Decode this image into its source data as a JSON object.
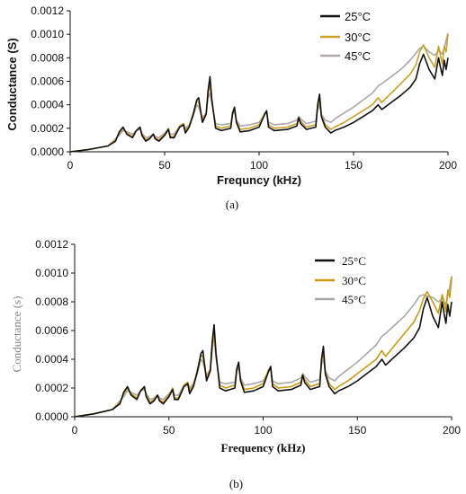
{
  "chart_data": [
    {
      "type": "line",
      "panel": "a",
      "caption": "(a)",
      "xlabel": "Frequncy (kHz)",
      "ylabel": "Conductance (S)",
      "xlim": [
        0,
        200
      ],
      "ylim": [
        0,
        0.0012
      ],
      "xticks": [
        "0",
        "50",
        "100",
        "150",
        "200"
      ],
      "yticks": [
        "0.0000",
        "0.0002",
        "0.0004",
        "0.0006",
        "0.0008",
        "0.0010",
        "0.0012"
      ],
      "legend_position": "top-right",
      "series": [
        {
          "name": "25°C",
          "color": "#111111",
          "x": [
            0,
            10,
            20,
            24,
            26,
            28,
            30,
            33,
            35,
            37,
            38,
            40,
            42,
            44,
            45,
            47,
            50,
            52,
            53,
            55,
            58,
            60,
            61,
            63,
            65,
            67,
            68,
            70,
            72,
            73,
            74,
            75,
            77,
            80,
            85,
            86,
            87,
            88,
            90,
            95,
            100,
            103,
            104,
            105,
            108,
            115,
            120,
            121,
            122,
            125,
            130,
            131,
            132,
            133,
            135,
            138,
            140,
            145,
            150,
            155,
            160,
            163,
            165,
            170,
            175,
            180,
            183,
            185,
            187,
            190,
            193,
            195,
            196,
            197,
            198,
            199,
            200
          ],
          "y": [
            0,
            2e-05,
            5e-05,
            9e-05,
            0.00017,
            0.00021,
            0.00015,
            0.00012,
            0.00018,
            0.00021,
            0.00014,
            9e-05,
            0.00011,
            0.00015,
            0.00011,
            9e-05,
            0.00014,
            0.00019,
            0.00012,
            0.00012,
            0.00021,
            0.00023,
            0.00016,
            0.00021,
            0.00031,
            0.00044,
            0.00046,
            0.00025,
            0.00032,
            0.00052,
            0.00064,
            0.00044,
            0.0002,
            0.00018,
            0.0002,
            0.00033,
            0.00038,
            0.00025,
            0.00017,
            0.00018,
            0.00021,
            0.00032,
            0.00035,
            0.00021,
            0.00018,
            0.00019,
            0.00022,
            0.00029,
            0.00024,
            0.00019,
            0.00021,
            0.0004,
            0.00049,
            0.0003,
            0.00021,
            0.00016,
            0.00018,
            0.00021,
            0.00025,
            0.0003,
            0.00035,
            0.0004,
            0.00036,
            0.00042,
            0.00048,
            0.00055,
            0.00062,
            0.00075,
            0.00083,
            0.0007,
            0.00062,
            0.0008,
            0.00072,
            0.00065,
            0.00078,
            0.0007,
            0.0008
          ]
        },
        {
          "name": "30°C",
          "color": "#c9a227",
          "x": [
            0,
            10,
            20,
            24,
            26,
            28,
            30,
            33,
            35,
            37,
            38,
            40,
            42,
            44,
            45,
            47,
            50,
            52,
            53,
            55,
            58,
            60,
            61,
            63,
            65,
            67,
            68,
            70,
            72,
            73,
            74,
            75,
            77,
            80,
            85,
            86,
            87,
            88,
            90,
            95,
            100,
            103,
            104,
            105,
            108,
            115,
            120,
            121,
            122,
            125,
            130,
            131,
            132,
            133,
            135,
            138,
            140,
            145,
            150,
            155,
            160,
            163,
            165,
            170,
            175,
            180,
            183,
            185,
            187,
            190,
            193,
            195,
            196,
            197,
            198,
            199,
            200
          ],
          "y": [
            0,
            2e-05,
            5e-05,
            0.0001,
            0.00016,
            0.0002,
            0.00016,
            0.00013,
            0.00018,
            0.0002,
            0.00015,
            0.0001,
            0.00012,
            0.00015,
            0.00012,
            0.0001,
            0.00015,
            0.0002,
            0.00013,
            0.00013,
            0.00022,
            0.00024,
            0.00018,
            0.00022,
            0.00032,
            0.00043,
            0.00042,
            0.00027,
            0.00033,
            0.0005,
            0.00057,
            0.00043,
            0.00022,
            0.0002,
            0.00022,
            0.00034,
            0.00037,
            0.00026,
            0.00019,
            0.0002,
            0.00023,
            0.00033,
            0.00034,
            0.00023,
            0.0002,
            0.00021,
            0.00024,
            0.00029,
            0.00026,
            0.00021,
            0.00023,
            0.00039,
            0.00044,
            0.00031,
            0.00023,
            0.00019,
            0.00021,
            0.00025,
            0.0003,
            0.00035,
            0.0004,
            0.00046,
            0.00042,
            0.0005,
            0.00058,
            0.00066,
            0.00074,
            0.00085,
            0.00091,
            0.0008,
            0.00072,
            0.0009,
            0.00082,
            0.00075,
            0.0009,
            0.00085,
            0.001
          ]
        },
        {
          "name": "45°C",
          "color": "#b0a6ad",
          "x": [
            0,
            10,
            20,
            24,
            26,
            28,
            30,
            33,
            35,
            37,
            38,
            40,
            42,
            44,
            45,
            47,
            50,
            52,
            53,
            55,
            58,
            60,
            61,
            63,
            65,
            67,
            68,
            70,
            72,
            73,
            74,
            75,
            77,
            80,
            85,
            86,
            87,
            88,
            90,
            95,
            100,
            103,
            104,
            105,
            108,
            115,
            120,
            121,
            122,
            125,
            130,
            131,
            132,
            133,
            135,
            138,
            140,
            145,
            150,
            155,
            160,
            163,
            165,
            170,
            175,
            180,
            183,
            185,
            187,
            190,
            193,
            195,
            196,
            197,
            198,
            199,
            200
          ],
          "y": [
            0,
            2e-05,
            5e-05,
            0.00011,
            0.00014,
            0.00018,
            0.00017,
            0.00015,
            0.00018,
            0.00019,
            0.00016,
            0.00012,
            0.00013,
            0.00015,
            0.00013,
            0.00012,
            0.00016,
            0.00019,
            0.00015,
            0.00015,
            0.00022,
            0.00024,
            0.0002,
            0.00023,
            0.0003,
            0.0004,
            0.00038,
            0.00029,
            0.00033,
            0.00046,
            0.0005,
            0.00041,
            0.00024,
            0.00023,
            0.00024,
            0.00032,
            0.00034,
            0.00027,
            0.00022,
            0.00023,
            0.00025,
            0.00032,
            0.00033,
            0.00025,
            0.00023,
            0.00024,
            0.00027,
            0.0003,
            0.00028,
            0.00024,
            0.00026,
            0.00036,
            0.0004,
            0.00032,
            0.00027,
            0.00025,
            0.00028,
            0.00033,
            0.00038,
            0.00044,
            0.0005,
            0.00056,
            0.00058,
            0.00064,
            0.0007,
            0.00078,
            0.00084,
            0.00088,
            0.0009,
            0.00085,
            0.00082,
            0.00086,
            0.00085,
            0.00083,
            0.00088,
            0.00095,
            0.00101
          ]
        }
      ]
    },
    {
      "type": "line",
      "panel": "b",
      "caption": "(b)",
      "xlabel": "Frequency (kHz)",
      "ylabel": "Conductance (s)",
      "xlim": [
        0,
        200
      ],
      "ylim": [
        0,
        0.0012
      ],
      "xticks": [
        "0",
        "50",
        "100",
        "150",
        "200"
      ],
      "yticks": [
        "0.0000",
        "0.0002",
        "0.0004",
        "0.0006",
        "0.0008",
        "0.0010",
        "0.0012"
      ],
      "legend_position": "top-right",
      "series": [
        {
          "name": "25°C",
          "color": "#111111",
          "x": [
            0,
            10,
            20,
            24,
            26,
            28,
            30,
            33,
            35,
            37,
            38,
            40,
            42,
            44,
            45,
            47,
            50,
            52,
            53,
            55,
            58,
            60,
            61,
            63,
            65,
            67,
            68,
            70,
            72,
            73,
            74,
            75,
            77,
            80,
            85,
            86,
            87,
            88,
            90,
            95,
            100,
            103,
            104,
            105,
            108,
            115,
            120,
            121,
            122,
            125,
            130,
            131,
            132,
            133,
            135,
            138,
            140,
            145,
            150,
            155,
            160,
            163,
            165,
            170,
            175,
            180,
            183,
            185,
            187,
            190,
            193,
            195,
            196,
            197,
            198,
            199,
            200
          ],
          "y": [
            0,
            2e-05,
            5e-05,
            9e-05,
            0.00017,
            0.00021,
            0.00015,
            0.00012,
            0.00018,
            0.00021,
            0.00014,
            9e-05,
            0.00011,
            0.00015,
            0.00011,
            9e-05,
            0.00014,
            0.00019,
            0.00012,
            0.00012,
            0.00021,
            0.00023,
            0.00016,
            0.00021,
            0.00031,
            0.00044,
            0.00046,
            0.00025,
            0.00032,
            0.00052,
            0.00064,
            0.00044,
            0.0002,
            0.00018,
            0.0002,
            0.00033,
            0.00038,
            0.00025,
            0.00017,
            0.00018,
            0.00021,
            0.00032,
            0.00035,
            0.00021,
            0.00018,
            0.00019,
            0.00022,
            0.00029,
            0.00024,
            0.00019,
            0.00021,
            0.0004,
            0.00049,
            0.0003,
            0.00021,
            0.00016,
            0.00018,
            0.00021,
            0.00025,
            0.0003,
            0.00035,
            0.0004,
            0.00036,
            0.00042,
            0.00048,
            0.00055,
            0.00062,
            0.00075,
            0.00083,
            0.0007,
            0.00062,
            0.0008,
            0.00072,
            0.00065,
            0.00078,
            0.0007,
            0.0008
          ]
        },
        {
          "name": "30°C",
          "color": "#c99a10",
          "x": [
            0,
            10,
            20,
            24,
            26,
            28,
            30,
            33,
            35,
            37,
            38,
            40,
            42,
            44,
            45,
            47,
            50,
            52,
            53,
            55,
            58,
            60,
            61,
            63,
            65,
            67,
            68,
            70,
            72,
            73,
            74,
            75,
            77,
            80,
            85,
            86,
            87,
            88,
            90,
            95,
            100,
            103,
            104,
            105,
            108,
            115,
            120,
            121,
            122,
            125,
            130,
            131,
            132,
            133,
            135,
            138,
            140,
            145,
            150,
            155,
            160,
            163,
            165,
            170,
            175,
            180,
            183,
            185,
            187,
            190,
            193,
            195,
            196,
            197,
            198,
            199,
            200
          ],
          "y": [
            0,
            2e-05,
            5e-05,
            0.0001,
            0.00016,
            0.0002,
            0.00016,
            0.00013,
            0.00018,
            0.0002,
            0.00015,
            0.0001,
            0.00012,
            0.00015,
            0.00012,
            0.0001,
            0.00015,
            0.0002,
            0.00013,
            0.00013,
            0.00022,
            0.00024,
            0.00018,
            0.00022,
            0.00032,
            0.00043,
            0.00042,
            0.00027,
            0.00033,
            0.0005,
            0.00057,
            0.00043,
            0.00022,
            0.0002,
            0.00022,
            0.00034,
            0.00037,
            0.00026,
            0.00019,
            0.0002,
            0.00023,
            0.00033,
            0.00034,
            0.00023,
            0.0002,
            0.00021,
            0.00024,
            0.00029,
            0.00026,
            0.00021,
            0.00023,
            0.00039,
            0.00044,
            0.00031,
            0.00023,
            0.00019,
            0.00021,
            0.00025,
            0.0003,
            0.00035,
            0.0004,
            0.00046,
            0.00042,
            0.0005,
            0.00058,
            0.00066,
            0.00074,
            0.00082,
            0.00087,
            0.0008,
            0.00072,
            0.00085,
            0.0008,
            0.00073,
            0.00088,
            0.00083,
            0.00097
          ]
        },
        {
          "name": "45°C",
          "color": "#a8a8a8",
          "x": [
            0,
            10,
            20,
            24,
            26,
            28,
            30,
            33,
            35,
            37,
            38,
            40,
            42,
            44,
            45,
            47,
            50,
            52,
            53,
            55,
            58,
            60,
            61,
            63,
            65,
            67,
            68,
            70,
            72,
            73,
            74,
            75,
            77,
            80,
            85,
            86,
            87,
            88,
            90,
            95,
            100,
            103,
            104,
            105,
            108,
            115,
            120,
            121,
            122,
            125,
            130,
            131,
            132,
            133,
            135,
            138,
            140,
            145,
            150,
            155,
            160,
            163,
            165,
            170,
            175,
            180,
            183,
            185,
            187,
            190,
            193,
            195,
            196,
            197,
            198,
            199,
            200
          ],
          "y": [
            0,
            2e-05,
            5e-05,
            0.00011,
            0.00014,
            0.00018,
            0.00017,
            0.00015,
            0.00018,
            0.00019,
            0.00016,
            0.00012,
            0.00013,
            0.00015,
            0.00013,
            0.00012,
            0.00016,
            0.00019,
            0.00015,
            0.00015,
            0.00022,
            0.00024,
            0.0002,
            0.00023,
            0.0003,
            0.0004,
            0.00038,
            0.00029,
            0.00033,
            0.00046,
            0.00058,
            0.00041,
            0.00024,
            0.00023,
            0.00024,
            0.00032,
            0.00034,
            0.00027,
            0.00022,
            0.00023,
            0.00025,
            0.00032,
            0.00033,
            0.00025,
            0.00023,
            0.00024,
            0.00027,
            0.0003,
            0.00028,
            0.00024,
            0.00026,
            0.00036,
            0.0004,
            0.00032,
            0.00027,
            0.00025,
            0.00028,
            0.00033,
            0.00038,
            0.00044,
            0.0005,
            0.00056,
            0.00058,
            0.00064,
            0.0007,
            0.00078,
            0.00084,
            0.00085,
            0.00084,
            0.00083,
            0.0008,
            0.00082,
            0.0008,
            0.00078,
            0.00085,
            0.0009,
            0.00098
          ]
        }
      ]
    }
  ]
}
